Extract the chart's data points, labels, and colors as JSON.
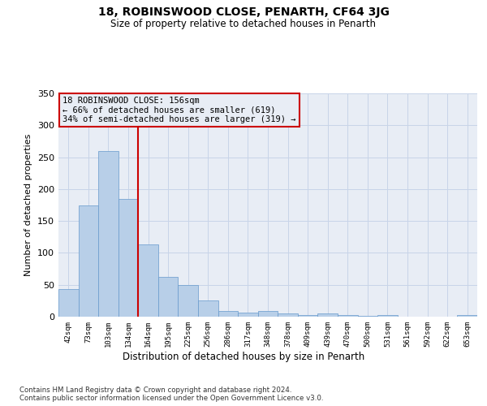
{
  "title1": "18, ROBINSWOOD CLOSE, PENARTH, CF64 3JG",
  "title2": "Size of property relative to detached houses in Penarth",
  "xlabel": "Distribution of detached houses by size in Penarth",
  "ylabel": "Number of detached properties",
  "categories": [
    "42sqm",
    "73sqm",
    "103sqm",
    "134sqm",
    "164sqm",
    "195sqm",
    "225sqm",
    "256sqm",
    "286sqm",
    "317sqm",
    "348sqm",
    "378sqm",
    "409sqm",
    "439sqm",
    "470sqm",
    "500sqm",
    "531sqm",
    "561sqm",
    "592sqm",
    "622sqm",
    "653sqm"
  ],
  "values": [
    43,
    175,
    260,
    185,
    113,
    63,
    50,
    25,
    9,
    6,
    9,
    5,
    3,
    5,
    2,
    1,
    2,
    0,
    0,
    0,
    2
  ],
  "bar_color": "#b8cfe8",
  "bar_edge_color": "#6699cc",
  "grid_color": "#c8d4e8",
  "annotation_text": "18 ROBINSWOOD CLOSE: 156sqm\n← 66% of detached houses are smaller (619)\n34% of semi-detached houses are larger (319) →",
  "vline_x_index": 3.5,
  "vline_color": "#cc0000",
  "annotation_box_edge_color": "#cc0000",
  "ylim": [
    0,
    350
  ],
  "yticks": [
    0,
    50,
    100,
    150,
    200,
    250,
    300,
    350
  ],
  "footer_line1": "Contains HM Land Registry data © Crown copyright and database right 2024.",
  "footer_line2": "Contains public sector information licensed under the Open Government Licence v3.0.",
  "background_color": "#e8edf5",
  "figure_bg": "#ffffff"
}
